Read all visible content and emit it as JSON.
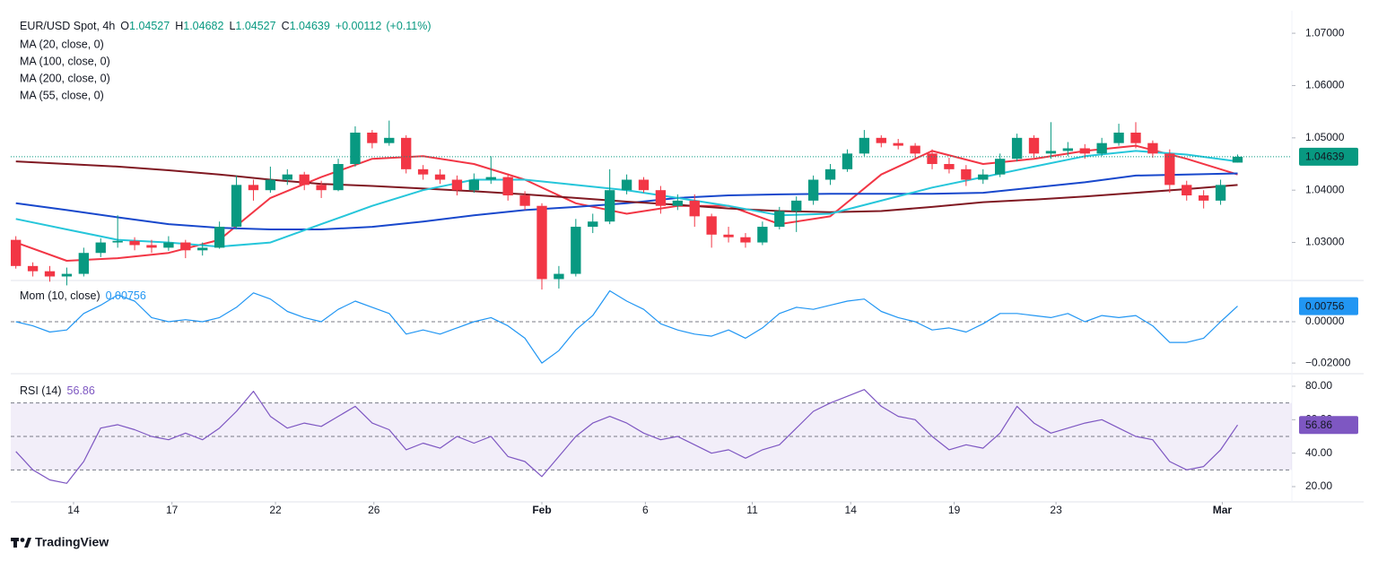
{
  "brand": "TradingView",
  "chart_data": [
    {
      "type": "candlestick",
      "title": "EUR/USD Spot, 4h",
      "header_fields": [
        {
          "label": "O",
          "value": 1.04527
        },
        {
          "label": "H",
          "value": 1.04682
        },
        {
          "label": "L",
          "value": 1.04527
        },
        {
          "label": "C",
          "value": 1.04639
        }
      ],
      "change": "+0.00112",
      "change_pct": "(+0.11%)",
      "up_color": "#089981",
      "down_color": "#f23645",
      "xlim": [
        -0.3,
        75.2
      ],
      "xticks": [
        {
          "value": 3.4,
          "label": "14"
        },
        {
          "value": 9.2,
          "label": "17"
        },
        {
          "value": 15.3,
          "label": "22"
        },
        {
          "value": 21.1,
          "label": "26"
        },
        {
          "value": 31.0,
          "label": "Feb"
        },
        {
          "value": 37.1,
          "label": "6"
        },
        {
          "value": 43.4,
          "label": "11"
        },
        {
          "value": 49.2,
          "label": "14"
        },
        {
          "value": 55.3,
          "label": "19"
        },
        {
          "value": 61.3,
          "label": "23"
        },
        {
          "value": 71.1,
          "label": "Mar"
        }
      ],
      "ylim": [
        1.0229,
        1.0743
      ],
      "yticks": [
        {
          "value": 1.07,
          "label": "1.07000"
        },
        {
          "value": 1.06,
          "label": "1.06000"
        },
        {
          "value": 1.05,
          "label": "1.05000"
        },
        {
          "value": 1.04,
          "label": "1.04000"
        },
        {
          "value": 1.03,
          "label": "1.03000"
        }
      ],
      "candles": [
        [
          1.0305,
          1.0312,
          1.025,
          1.0255
        ],
        [
          1.0255,
          1.0262,
          1.0235,
          1.0245
        ],
        [
          1.0245,
          1.0255,
          1.0225,
          1.0235
        ],
        [
          1.0235,
          1.0252,
          1.0218,
          1.024
        ],
        [
          1.024,
          1.029,
          1.0235,
          1.028
        ],
        [
          1.028,
          1.0308,
          1.0272,
          1.03
        ],
        [
          1.03,
          1.0352,
          1.029,
          1.0303
        ],
        [
          1.0303,
          1.031,
          1.0285,
          1.0295
        ],
        [
          1.0295,
          1.0305,
          1.028,
          1.029
        ],
        [
          1.029,
          1.0312,
          1.0284,
          1.03
        ],
        [
          1.03,
          1.0305,
          1.027,
          1.0285
        ],
        [
          1.0285,
          1.03,
          1.0275,
          1.029
        ],
        [
          1.029,
          1.034,
          1.0288,
          1.033
        ],
        [
          1.033,
          1.0428,
          1.0325,
          1.041
        ],
        [
          1.041,
          1.042,
          1.038,
          1.04
        ],
        [
          1.04,
          1.0445,
          1.0395,
          1.042
        ],
        [
          1.042,
          1.044,
          1.041,
          1.043
        ],
        [
          1.043,
          1.0435,
          1.04,
          1.041
        ],
        [
          1.041,
          1.0418,
          1.0385,
          1.04
        ],
        [
          1.04,
          1.046,
          1.0398,
          1.045
        ],
        [
          1.045,
          1.0522,
          1.0445,
          1.051
        ],
        [
          1.051,
          1.0515,
          1.048,
          1.049
        ],
        [
          1.049,
          1.0533,
          1.0485,
          1.05
        ],
        [
          1.05,
          1.0505,
          1.0432,
          1.044
        ],
        [
          1.044,
          1.0448,
          1.042,
          1.043
        ],
        [
          1.043,
          1.044,
          1.0412,
          1.042
        ],
        [
          1.042,
          1.0428,
          1.039,
          1.04
        ],
        [
          1.04,
          1.0432,
          1.0395,
          1.042
        ],
        [
          1.042,
          1.0465,
          1.0412,
          1.0425
        ],
        [
          1.0425,
          1.0432,
          1.038,
          1.039
        ],
        [
          1.039,
          1.0398,
          1.0362,
          1.037
        ],
        [
          1.037,
          1.0375,
          1.021,
          1.023
        ],
        [
          1.023,
          1.0255,
          1.0212,
          1.024
        ],
        [
          1.024,
          1.0345,
          1.0235,
          1.033
        ],
        [
          1.033,
          1.0355,
          1.0318,
          1.034
        ],
        [
          1.034,
          1.044,
          1.0335,
          1.04
        ],
        [
          1.04,
          1.043,
          1.0392,
          1.042
        ],
        [
          1.042,
          1.0425,
          1.0395,
          1.04
        ],
        [
          1.04,
          1.0408,
          1.0355,
          1.037
        ],
        [
          1.037,
          1.0392,
          1.0362,
          1.038
        ],
        [
          1.038,
          1.0392,
          1.033,
          1.035
        ],
        [
          1.035,
          1.0355,
          1.029,
          1.0315
        ],
        [
          1.0315,
          1.033,
          1.03,
          1.031
        ],
        [
          1.031,
          1.0318,
          1.029,
          1.03
        ],
        [
          1.03,
          1.034,
          1.0295,
          1.033
        ],
        [
          1.033,
          1.0368,
          1.0325,
          1.036
        ],
        [
          1.036,
          1.0388,
          1.032,
          1.038
        ],
        [
          1.038,
          1.0428,
          1.0372,
          1.042
        ],
        [
          1.042,
          1.045,
          1.041,
          1.044
        ],
        [
          1.044,
          1.0478,
          1.0435,
          1.047
        ],
        [
          1.047,
          1.0515,
          1.0465,
          1.05
        ],
        [
          1.05,
          1.0505,
          1.0482,
          1.049
        ],
        [
          1.049,
          1.0498,
          1.0478,
          1.0485
        ],
        [
          1.0485,
          1.049,
          1.0462,
          1.047
        ],
        [
          1.047,
          1.0478,
          1.044,
          1.045
        ],
        [
          1.045,
          1.0462,
          1.0432,
          1.044
        ],
        [
          1.044,
          1.0448,
          1.0408,
          1.042
        ],
        [
          1.042,
          1.044,
          1.0412,
          1.043
        ],
        [
          1.043,
          1.047,
          1.0425,
          1.046
        ],
        [
          1.046,
          1.0508,
          1.0455,
          1.05
        ],
        [
          1.05,
          1.0505,
          1.0462,
          1.047
        ],
        [
          1.047,
          1.053,
          1.046,
          1.0475
        ],
        [
          1.0475,
          1.0492,
          1.0465,
          1.048
        ],
        [
          1.048,
          1.0488,
          1.046,
          1.047
        ],
        [
          1.047,
          1.05,
          1.0465,
          1.049
        ],
        [
          1.049,
          1.0527,
          1.0485,
          1.051
        ],
        [
          1.051,
          1.053,
          1.048,
          1.049
        ],
        [
          1.049,
          1.0495,
          1.0462,
          1.047
        ],
        [
          1.047,
          1.0478,
          1.0395,
          1.041
        ],
        [
          1.041,
          1.0418,
          1.038,
          1.039
        ],
        [
          1.039,
          1.04,
          1.0365,
          1.038
        ],
        [
          1.038,
          1.042,
          1.0372,
          1.041
        ],
        [
          1.04527,
          1.04682,
          1.04527,
          1.04639
        ]
      ],
      "series": [
        {
          "name": "MA (20, close, 0)",
          "color": "#f23645",
          "x": [
            0,
            3,
            6,
            9,
            12,
            15,
            18,
            21,
            24,
            27,
            30,
            33,
            36,
            39,
            42,
            45,
            48,
            51,
            54,
            57,
            60,
            63,
            66,
            69,
            72
          ],
          "values": [
            1.03,
            1.0265,
            1.027,
            1.028,
            1.0305,
            1.0385,
            1.0425,
            1.046,
            1.0465,
            1.045,
            1.042,
            1.0375,
            1.0355,
            1.037,
            1.037,
            1.0335,
            1.035,
            1.043,
            1.0475,
            1.045,
            1.046,
            1.0475,
            1.0485,
            1.046,
            1.043
          ]
        },
        {
          "name": "MA (100, close, 0)",
          "color": "#1848cc",
          "x": [
            0,
            3,
            6,
            9,
            12,
            15,
            18,
            21,
            24,
            27,
            30,
            33,
            36,
            39,
            42,
            45,
            48,
            51,
            54,
            57,
            60,
            63,
            66,
            69,
            72
          ],
          "values": [
            1.0375,
            1.0362,
            1.0348,
            1.0335,
            1.0328,
            1.0325,
            1.0325,
            1.033,
            1.034,
            1.0352,
            1.0362,
            1.0368,
            1.0375,
            1.0385,
            1.039,
            1.0392,
            1.0393,
            1.0393,
            1.0393,
            1.0395,
            1.0405,
            1.0415,
            1.0428,
            1.043,
            1.0432
          ]
        },
        {
          "name": "MA (200, close, 0)",
          "color": "#801922",
          "x": [
            0,
            3,
            6,
            9,
            12,
            15,
            18,
            21,
            24,
            27,
            30,
            33,
            36,
            39,
            42,
            45,
            48,
            51,
            54,
            57,
            60,
            63,
            66,
            69,
            72
          ],
          "values": [
            1.0455,
            1.045,
            1.0445,
            1.0438,
            1.043,
            1.042,
            1.0412,
            1.0408,
            1.0403,
            1.0398,
            1.0392,
            1.0385,
            1.0378,
            1.0372,
            1.0365,
            1.036,
            1.0358,
            1.036,
            1.0368,
            1.0377,
            1.0382,
            1.0388,
            1.0395,
            1.0402,
            1.041
          ]
        },
        {
          "name": "MA (55, close, 0)",
          "color": "#26c6da",
          "x": [
            0,
            3,
            6,
            9,
            12,
            15,
            18,
            21,
            24,
            27,
            30,
            33,
            36,
            39,
            42,
            45,
            48,
            51,
            54,
            57,
            60,
            63,
            66,
            69,
            72
          ],
          "values": [
            1.0345,
            1.0325,
            1.0305,
            1.03,
            1.0292,
            1.03,
            1.0335,
            1.037,
            1.04,
            1.042,
            1.042,
            1.041,
            1.04,
            1.0385,
            1.037,
            1.0352,
            1.0355,
            1.038,
            1.0405,
            1.0425,
            1.0445,
            1.0465,
            1.0475,
            1.0468,
            1.0455
          ]
        }
      ]
    },
    {
      "type": "line",
      "title": "Mom (10, close)",
      "color": "#2196f3",
      "ylim": [
        -0.0243,
        0.0178
      ],
      "yticks": [
        {
          "value": 0,
          "label": "0.00000"
        },
        {
          "value": -0.02,
          "label": "−0.02000"
        }
      ],
      "zero_line": 0,
      "values": [
        0,
        -0.002,
        -0.005,
        -0.004,
        0.004,
        0.008,
        0.013,
        0.01,
        0.002,
        0,
        0.001,
        0,
        0.002,
        0.007,
        0.014,
        0.011,
        0.005,
        0.002,
        0,
        0.006,
        0.01,
        0.007,
        0.004,
        -0.006,
        -0.004,
        -0.006,
        -0.003,
        0,
        0.002,
        -0.002,
        -0.008,
        -0.02,
        -0.014,
        -0.004,
        0.003,
        0.015,
        0.01,
        0.006,
        -0.001,
        -0.004,
        -0.006,
        -0.007,
        -0.004,
        -0.008,
        -0.003,
        0.004,
        0.007,
        0.006,
        0.008,
        0.01,
        0.011,
        0.005,
        0.002,
        0,
        -0.004,
        -0.003,
        -0.005,
        -0.001,
        0.004,
        0.004,
        0.003,
        0.002,
        0.004,
        0,
        0.003,
        0.002,
        0.003,
        -0.002,
        -0.01,
        -0.01,
        -0.008,
        0,
        0.00756
      ]
    },
    {
      "type": "line",
      "title": "RSI (14)",
      "color": "#7e57c2",
      "ylim": [
        10.9,
        85.9
      ],
      "yticks": [
        {
          "value": 80,
          "label": "80.00"
        },
        {
          "value": 60,
          "label": "60.00"
        },
        {
          "value": 40,
          "label": "40.00"
        },
        {
          "value": 20,
          "label": "20.00"
        }
      ],
      "bands": [
        30,
        50,
        70
      ],
      "values": [
        41,
        30,
        24,
        22,
        35,
        55,
        57,
        54,
        50,
        48,
        52,
        48,
        55,
        65,
        77,
        62,
        55,
        58,
        56,
        62,
        68,
        58,
        54,
        42,
        46,
        43,
        50,
        46,
        50,
        38,
        35,
        26,
        38,
        50,
        58,
        62,
        58,
        52,
        48,
        50,
        45,
        40,
        42,
        37,
        42,
        45,
        55,
        65,
        70,
        74,
        78,
        68,
        62,
        60,
        50,
        42,
        45,
        43,
        52,
        68,
        58,
        52,
        55,
        58,
        60,
        55,
        50,
        48,
        35,
        30,
        32,
        42,
        56.86
      ]
    }
  ]
}
